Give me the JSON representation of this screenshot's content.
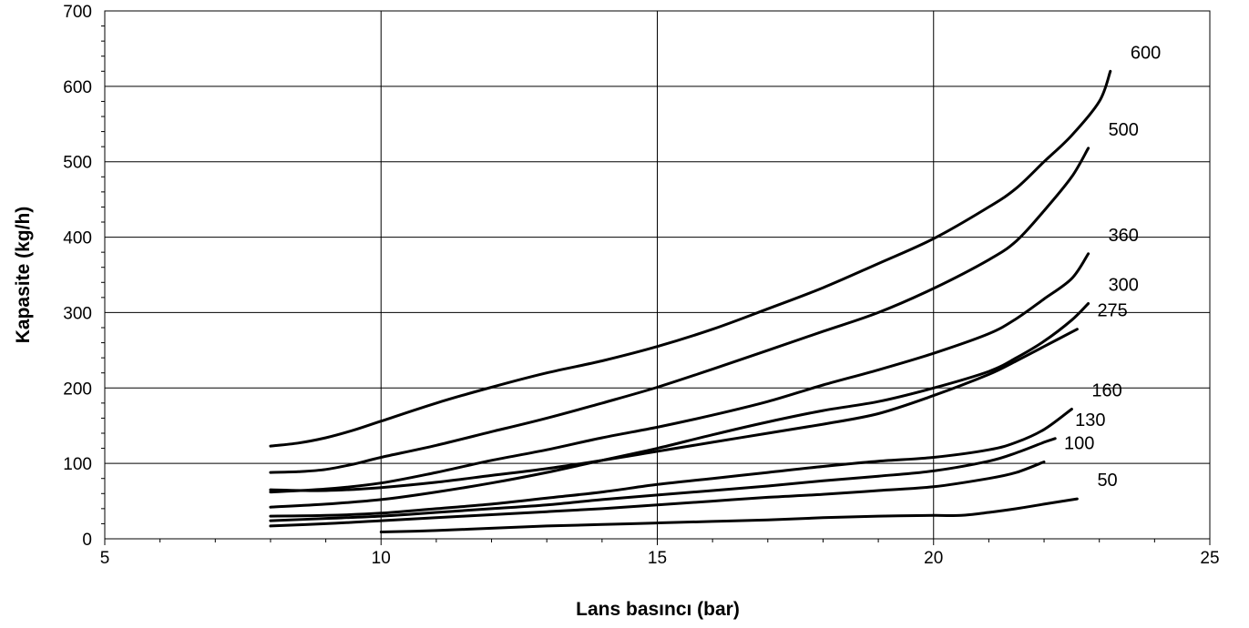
{
  "chart_data": {
    "type": "line",
    "title": "",
    "xlabel": "Lans basıncı (bar)",
    "ylabel": "Kapasite (kg/h)",
    "xlim": [
      5,
      25
    ],
    "ylim": [
      0,
      700
    ],
    "x_ticks": [
      5,
      10,
      15,
      20,
      25
    ],
    "y_ticks": [
      0,
      100,
      200,
      300,
      400,
      500,
      600,
      700
    ],
    "grid": true,
    "legend": "none",
    "series": [
      {
        "name": "600",
        "x": [
          8,
          8.5,
          9,
          9.5,
          10,
          11,
          12,
          13,
          14,
          15,
          16,
          17,
          18,
          19,
          20,
          21,
          21.5,
          22,
          22.5,
          23,
          23.2
        ],
        "y": [
          123,
          127,
          134,
          144,
          156,
          180,
          201,
          220,
          236,
          255,
          278,
          305,
          333,
          365,
          398,
          440,
          465,
          500,
          535,
          580,
          620
        ]
      },
      {
        "name": "500",
        "x": [
          8,
          8.5,
          9,
          9.5,
          10,
          11,
          12,
          13,
          14,
          15,
          16,
          17,
          18,
          19,
          20,
          21,
          21.5,
          22,
          22.5,
          22.8
        ],
        "y": [
          88,
          89,
          92,
          99,
          108,
          124,
          142,
          160,
          180,
          201,
          225,
          250,
          275,
          300,
          332,
          370,
          395,
          435,
          480,
          518
        ]
      },
      {
        "name": "360",
        "x": [
          8,
          9,
          10,
          11,
          12,
          13,
          14,
          15,
          16,
          17,
          18,
          19,
          20,
          21,
          21.5,
          22,
          22.5,
          22.8
        ],
        "y": [
          62,
          66,
          74,
          88,
          104,
          118,
          134,
          148,
          164,
          182,
          204,
          224,
          246,
          272,
          292,
          318,
          345,
          378
        ]
      },
      {
        "name": "300",
        "x": [
          8,
          9,
          10,
          11,
          12,
          13,
          14,
          15,
          16,
          17,
          18,
          19,
          20,
          21,
          21.5,
          22,
          22.5,
          22.8
        ],
        "y": [
          42,
          46,
          52,
          62,
          74,
          88,
          104,
          120,
          138,
          155,
          170,
          182,
          200,
          222,
          240,
          262,
          290,
          312
        ]
      },
      {
        "name": "275",
        "x": [
          8,
          9,
          10,
          11,
          12,
          13,
          14,
          15,
          16,
          17,
          18,
          19,
          20,
          21,
          21.5,
          22,
          22.6
        ],
        "y": [
          65,
          64,
          68,
          75,
          84,
          93,
          104,
          116,
          128,
          140,
          152,
          166,
          190,
          218,
          236,
          255,
          278
        ]
      },
      {
        "name": "160",
        "x": [
          8,
          9,
          10,
          11,
          12,
          13,
          14,
          15,
          16,
          17,
          18,
          19,
          20,
          21,
          21.5,
          22,
          22.5
        ],
        "y": [
          30,
          31,
          34,
          40,
          46,
          54,
          62,
          72,
          80,
          88,
          96,
          103,
          108,
          118,
          128,
          145,
          172
        ]
      },
      {
        "name": "130",
        "x": [
          8,
          9,
          10,
          11,
          12,
          13,
          14,
          15,
          16,
          17,
          18,
          19,
          20,
          21,
          21.5,
          22,
          22.2
        ],
        "y": [
          24,
          27,
          30,
          35,
          40,
          45,
          52,
          58,
          64,
          70,
          77,
          83,
          90,
          103,
          114,
          128,
          133
        ]
      },
      {
        "name": "100",
        "x": [
          8,
          9,
          10,
          11,
          12,
          13,
          14,
          15,
          16,
          17,
          18,
          19,
          20,
          21,
          21.5,
          22
        ],
        "y": [
          17,
          20,
          24,
          28,
          32,
          36,
          40,
          45,
          50,
          55,
          59,
          64,
          69,
          80,
          88,
          102
        ]
      },
      {
        "name": "50",
        "x": [
          10,
          11,
          12,
          13,
          14,
          15,
          16,
          17,
          18,
          19,
          20,
          20.5,
          21,
          21.5,
          22,
          22.6
        ],
        "y": [
          9,
          11,
          14,
          17,
          19,
          21,
          23,
          25,
          28,
          30,
          31,
          31,
          35,
          40,
          46,
          53
        ]
      }
    ]
  }
}
